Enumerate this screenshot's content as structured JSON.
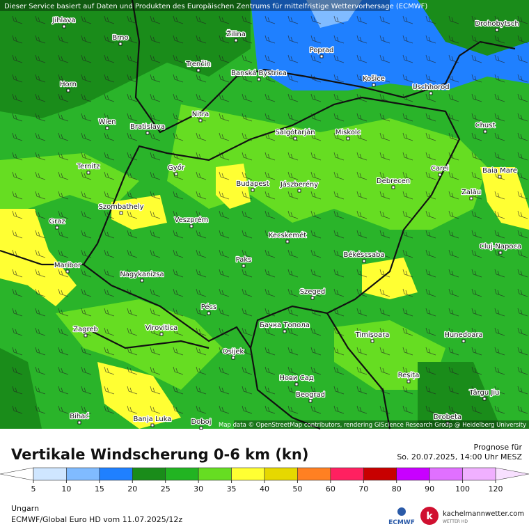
{
  "map": {
    "attribution_top": "Dieser Service basiert auf Daten und Produkten des Europäischen Zentrums für mittelfristige Wettervorhersage (ECMWF)",
    "attribution_bottom": "Map data © OpenStreetMap contributors, rendering GIScience Research Group @ Heidelberg University",
    "cities": [
      "Jihlava",
      "Brno",
      "Žilina",
      "Poprad",
      "Drohobytsch",
      "Trenčín",
      "Banská Bystrica",
      "Košice",
      "Uschhorod",
      "Horn",
      "Wien",
      "Bratislava",
      "Nitra",
      "Salgótarján",
      "Miskolc",
      "Chust",
      "Ternitz",
      "Győr",
      "Budapest",
      "Jászberény",
      "Debrecen",
      "Carei",
      "Baia Mare",
      "Szombathely",
      "Veszprém",
      "Zalău",
      "Graz",
      "Kecskemét",
      "Cluj-Napoca",
      "Békéscsaba",
      "Paks",
      "Maribor",
      "Nagykanizsa",
      "Szeged",
      "Pécs",
      "Zagreb",
      "Virovitica",
      "Бачка Топола",
      "Timișoara",
      "Hunedoara",
      "Osijek",
      "Нови Сад",
      "Reșița",
      "Târgu Jiu",
      "Beograd",
      "Bihać",
      "Banja Luka",
      "Doboj",
      "Drobeta"
    ]
  },
  "legend": {
    "title": "Vertikale Windscherung 0-6 km (kn)",
    "forecast_label": "Prognose für",
    "forecast_time": "So. 20.07.2025, 14:00 Uhr MESZ",
    "ticks": [
      5,
      10,
      15,
      20,
      25,
      30,
      35,
      40,
      50,
      60,
      70,
      80,
      90,
      100,
      120
    ],
    "colors": [
      "#ffffff",
      "#cfe6ff",
      "#80bbff",
      "#1f80ff",
      "#1a8c1a",
      "#22b422",
      "#66dd22",
      "#ffff33",
      "#e6d800",
      "#ff8022",
      "#ff2060",
      "#c80000",
      "#c800ff",
      "#e070ff",
      "#f0b0ff",
      "#f8e0ff"
    ]
  },
  "footer": {
    "region": "Ungarn",
    "model": "ECMWF/Global Euro HD vom  11.07.2025/12z",
    "ecmwf": "ECMWF",
    "brand": "kachelmannwetter.com",
    "brand_sub": "WETTER HD"
  }
}
